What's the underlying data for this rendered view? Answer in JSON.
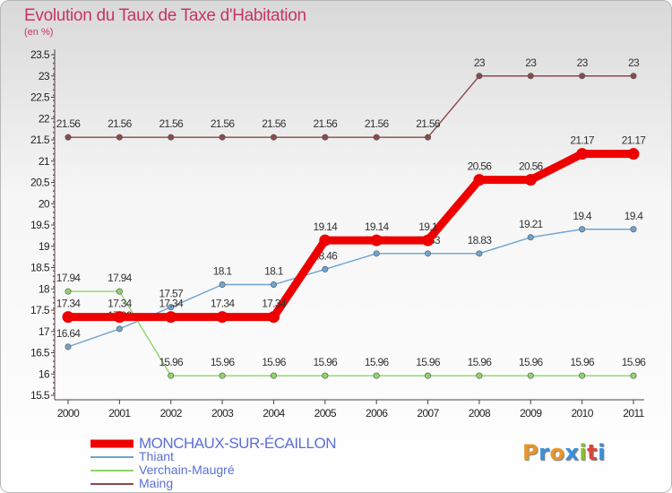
{
  "header": {
    "title": "Evolution du Taux de Taxe d'Habitation",
    "unit": "(en %)"
  },
  "logo": {
    "text": "Proxiti",
    "colors": [
      "#e8962a",
      "#3a8fd8",
      "#e8962a",
      "#3a8fd8",
      "#8cbf2a",
      "#d8453a",
      "#3a8fd8"
    ]
  },
  "chart_data": {
    "type": "line",
    "title": "Evolution du Taux de Taxe d'Habitation",
    "ylabel": "(en %)",
    "xlabel": "",
    "x": [
      "2000",
      "2001",
      "2002",
      "2003",
      "2004",
      "2005",
      "2006",
      "2007",
      "2008",
      "2009",
      "2010",
      "2011"
    ],
    "ylim": [
      15.5,
      23.5
    ],
    "yticks": [
      15.5,
      16,
      16.5,
      17,
      17.5,
      18,
      18.5,
      19,
      19.5,
      20,
      20.5,
      21,
      21.5,
      22,
      22.5,
      23,
      23.5
    ],
    "grid": false,
    "legend": "bottom-left",
    "series": [
      {
        "name": "MONCHAUX-SUR-ÉCAILLON",
        "color": "#ee0000",
        "emphasis": true,
        "values": [
          17.34,
          17.34,
          17.34,
          17.34,
          17.34,
          19.14,
          19.14,
          19.14,
          20.56,
          20.56,
          21.17,
          21.17
        ],
        "labels": [
          "17.34",
          "17.34",
          "17.34",
          "17.34",
          "17.34",
          "19.14",
          "19.14",
          "19.1",
          "20.56",
          "20.56",
          "21.17",
          "21.17"
        ]
      },
      {
        "name": "Thiant",
        "color": "#6fa3cf",
        "values": [
          16.64,
          17.06,
          17.57,
          18.1,
          18.1,
          18.46,
          18.83,
          18.83,
          18.83,
          19.21,
          19.4,
          19.4
        ],
        "labels": [
          "16.64",
          "17.06",
          "17.57",
          "18.1",
          "18.1",
          "18.46",
          "18.83",
          "18.83",
          "18.83",
          "19.21",
          "19.4",
          "19.4"
        ]
      },
      {
        "name": "Verchain-Maugré",
        "color": "#8fd46a",
        "values": [
          17.94,
          17.94,
          15.96,
          15.96,
          15.96,
          15.96,
          15.96,
          15.96,
          15.96,
          15.96,
          15.96,
          15.96
        ],
        "labels": [
          "17.94",
          "17.94",
          "15.96",
          "15.96",
          "15.96",
          "15.96",
          "15.96",
          "15.96",
          "15.96",
          "15.96",
          "15.96",
          "15.96"
        ]
      },
      {
        "name": "Maing",
        "color": "#8a4a4a",
        "values": [
          21.56,
          21.56,
          21.56,
          21.56,
          21.56,
          21.56,
          21.56,
          21.56,
          23,
          23,
          23,
          23
        ],
        "labels": [
          "21.56",
          "21.56",
          "21.56",
          "21.56",
          "21.56",
          "21.56",
          "21.56",
          "21.56",
          "23",
          "23",
          "23",
          "23"
        ]
      }
    ]
  }
}
